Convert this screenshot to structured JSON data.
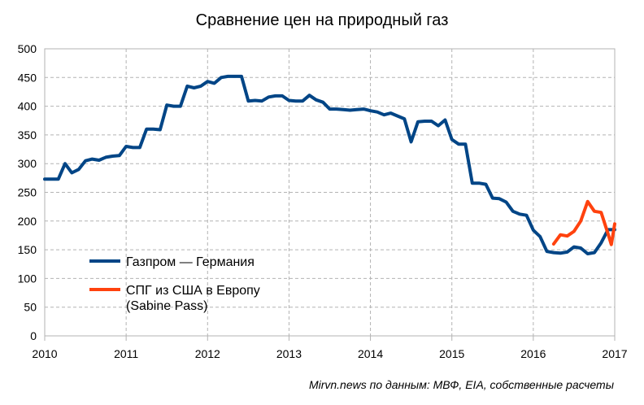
{
  "chart_data": {
    "type": "line",
    "title": "Сравнение цен на природный газ",
    "source": "Mirvn.news по данным: МВФ, EIA, собственные расчеты",
    "xlabel": "",
    "ylabel": "",
    "xlim": [
      2010,
      2017
    ],
    "ylim": [
      0,
      500
    ],
    "x_ticks": [
      "2010",
      "2011",
      "2012",
      "2013",
      "2014",
      "2015",
      "2016",
      "2017"
    ],
    "y_ticks": [
      "0",
      "50",
      "100",
      "150",
      "200",
      "250",
      "300",
      "350",
      "400",
      "450",
      "500"
    ],
    "grid": true,
    "legend_position": "bottom-left",
    "series": [
      {
        "name": "Газпром — Германия",
        "color": "#004586",
        "x": [
          2010.0,
          2010.083,
          2010.167,
          2010.25,
          2010.333,
          2010.417,
          2010.5,
          2010.583,
          2010.667,
          2010.75,
          2010.833,
          2010.917,
          2011.0,
          2011.083,
          2011.167,
          2011.25,
          2011.333,
          2011.417,
          2011.5,
          2011.583,
          2011.667,
          2011.75,
          2011.833,
          2011.917,
          2012.0,
          2012.083,
          2012.167,
          2012.25,
          2012.333,
          2012.417,
          2012.5,
          2012.583,
          2012.667,
          2012.75,
          2012.833,
          2012.917,
          2013.0,
          2013.083,
          2013.167,
          2013.25,
          2013.333,
          2013.417,
          2013.5,
          2013.583,
          2013.667,
          2013.75,
          2013.833,
          2013.917,
          2014.0,
          2014.083,
          2014.167,
          2014.25,
          2014.333,
          2014.417,
          2014.5,
          2014.583,
          2014.667,
          2014.75,
          2014.833,
          2014.917,
          2015.0,
          2015.083,
          2015.167,
          2015.25,
          2015.333,
          2015.417,
          2015.5,
          2015.583,
          2015.667,
          2015.75,
          2015.833,
          2015.917,
          2016.0,
          2016.083,
          2016.167,
          2016.25,
          2016.333,
          2016.417,
          2016.5,
          2016.583,
          2016.667,
          2016.75,
          2016.833,
          2016.917,
          2017.0
        ],
        "y": [
          273,
          273,
          273,
          300,
          284,
          290,
          305,
          308,
          306,
          311,
          313,
          314,
          330,
          328,
          328,
          360,
          360,
          359,
          402,
          400,
          400,
          435,
          432,
          435,
          443,
          440,
          450,
          452,
          452,
          452,
          409,
          410,
          409,
          416,
          418,
          418,
          410,
          409,
          409,
          419,
          411,
          407,
          395,
          395,
          394,
          393,
          394,
          395,
          392,
          390,
          385,
          388,
          383,
          378,
          338,
          373,
          374,
          374,
          366,
          376,
          342,
          334,
          334,
          266,
          266,
          264,
          240,
          239,
          233,
          217,
          212,
          210,
          184,
          173,
          147,
          145,
          144,
          146,
          155,
          153,
          143,
          145,
          162,
          185,
          185
        ]
      },
      {
        "name": "СПГ из США в Европу (Sabine Pass)",
        "color": "#ff420e",
        "x": [
          2016.25,
          2016.333,
          2016.417,
          2016.5,
          2016.583,
          2016.667,
          2016.75,
          2016.833,
          2016.917,
          2016.958,
          2017.0
        ],
        "y": [
          160,
          176,
          174,
          182,
          200,
          234,
          217,
          215,
          178,
          159,
          195
        ]
      }
    ],
    "legend": {
      "entries": [
        {
          "lines": [
            "Газпром — Германия"
          ]
        },
        {
          "lines": [
            "СПГ из США в Европу",
            "(Sabine Pass)"
          ]
        }
      ]
    }
  }
}
